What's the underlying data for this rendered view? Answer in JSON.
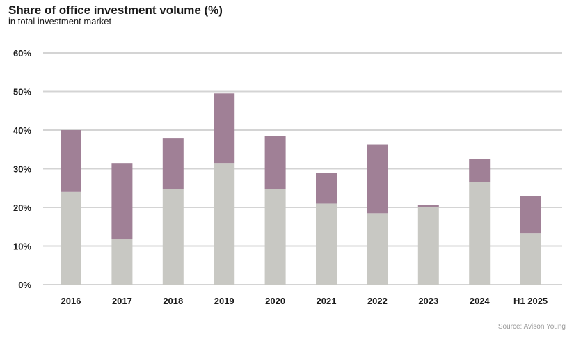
{
  "header": {
    "title": "Share of office investment volume (%)",
    "subtitle": "in total investment market"
  },
  "footer": {
    "source": "Source: Avison Young"
  },
  "colors": {
    "base": "#c8c8c3",
    "top": "#a08096",
    "grid": "#d4d4d4"
  },
  "chart_data": {
    "type": "bar",
    "stacked": true,
    "title": "Share of office investment volume (%)",
    "subtitle": "in total investment market",
    "categories": [
      "2016",
      "2017",
      "2018",
      "2019",
      "2020",
      "2021",
      "2022",
      "2023",
      "2024",
      "H1 2025"
    ],
    "series": [
      {
        "values": [
          24,
          11.7,
          24.7,
          31.5,
          24.7,
          21,
          18.5,
          20,
          26.6,
          13.3
        ],
        "color": "#c8c8c3"
      },
      {
        "values": [
          16,
          19.8,
          13.3,
          18,
          13.7,
          8,
          17.8,
          0.6,
          5.9,
          9.7
        ],
        "color": "#a08096"
      }
    ],
    "ylim": [
      0,
      60
    ],
    "yticks": [
      "0%",
      "10%",
      "20%",
      "30%",
      "40%",
      "50%",
      "60%"
    ],
    "grid": true,
    "legend": "none"
  }
}
